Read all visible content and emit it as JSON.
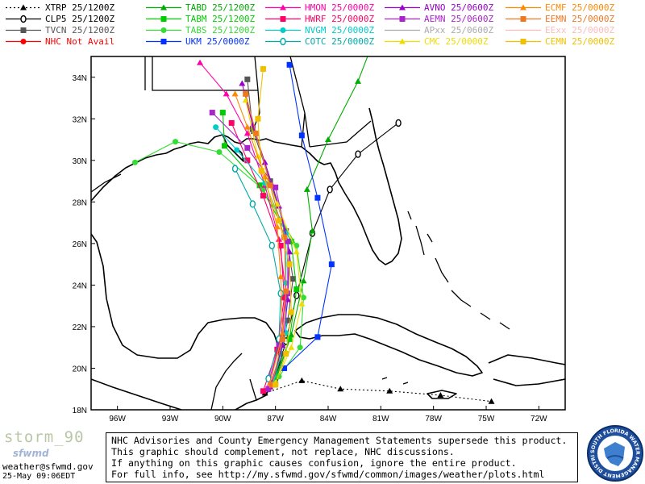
{
  "legend": [
    {
      "label": "XTRP 25/1200Z",
      "color": "#000000",
      "marker": "triangle",
      "dash": "2,3"
    },
    {
      "label": "CLP5 25/1200Z",
      "color": "#000000",
      "marker": "zero",
      "dash": ""
    },
    {
      "label": "TVCN 25/1200Z",
      "color": "#555555",
      "marker": "square",
      "dash": ""
    },
    {
      "label": "NHC Not Avail",
      "color": "#ff0000",
      "marker": "circle",
      "dash": ""
    },
    {
      "label": "TABD 25/1200Z",
      "color": "#00aa00",
      "marker": "triangle",
      "dash": ""
    },
    {
      "label": "TABM 25/1200Z",
      "color": "#00cc00",
      "marker": "square",
      "dash": ""
    },
    {
      "label": "TABS 25/1200Z",
      "color": "#33dd33",
      "marker": "circle",
      "dash": ""
    },
    {
      "label": "UKM 25/0000Z",
      "color": "#0033ff",
      "marker": "square",
      "dash": ""
    },
    {
      "label": "HMON 25/0000Z",
      "color": "#ff00aa",
      "marker": "triangle",
      "dash": ""
    },
    {
      "label": "HWRF 25/0000Z",
      "color": "#ff0066",
      "marker": "square",
      "dash": ""
    },
    {
      "label": "NVGM 25/0000Z",
      "color": "#00cccc",
      "marker": "circle",
      "dash": ""
    },
    {
      "label": "COTC 25/0000Z",
      "color": "#00aaaa",
      "marker": "zero",
      "dash": ""
    },
    {
      "label": "AVNO 25/0600Z",
      "color": "#9900cc",
      "marker": "triangle",
      "dash": ""
    },
    {
      "label": "AEMN 25/0600Z",
      "color": "#aa22cc",
      "marker": "square",
      "dash": ""
    },
    {
      "label": "APxx 25/0600Z",
      "color": "#aaaaaa",
      "marker": "none",
      "dash": ""
    },
    {
      "label": "CMC 25/0000Z",
      "color": "#eedd00",
      "marker": "triangle",
      "dash": ""
    },
    {
      "label": "ECMF 25/0000Z",
      "color": "#ff8800",
      "marker": "triangle",
      "dash": ""
    },
    {
      "label": "EEMN 25/0000Z",
      "color": "#ee7722",
      "marker": "square",
      "dash": ""
    },
    {
      "label": "EExx 25/0000Z",
      "color": "#ffbbbb",
      "marker": "none",
      "dash": ""
    },
    {
      "label": "CEMN 25/0000Z",
      "color": "#f0c000",
      "marker": "square",
      "dash": ""
    }
  ],
  "lat_labels": [
    "34N",
    "32N",
    "30N",
    "28N",
    "26N",
    "24N",
    "22N",
    "20N",
    "18N"
  ],
  "lon_labels": [
    "96W",
    "93W",
    "90W",
    "87W",
    "84W",
    "81W",
    "78W",
    "75W",
    "72W"
  ],
  "footer": {
    "storm_name": "storm_90",
    "wordmark": "sfwmd",
    "email": "weather@sfwmd.gov",
    "issued": "25-May 09:06EDT",
    "disclaimer": [
      "NHC Advisories and County Emergency Management Statements supersede this product.",
      "This graphic should complement, not replace, NHC discussions.",
      "If anything on this graphic causes confusion, ignore the entire product.",
      "For full info, see  http://my.sfwmd.gov/sfwmd/common/images/weather/plots.html"
    ],
    "seal_text": "SOUTH FLORIDA WATER MANAGEMENT DISTRICT"
  },
  "tracks": [
    {
      "name": "XTRP",
      "color": "#000000",
      "marker": "triangle",
      "dash": "2,3",
      "points": [
        [
          -87.6,
          18.8
        ],
        [
          -85.5,
          19.4
        ],
        [
          -83.3,
          19.0
        ],
        [
          -80.5,
          18.9
        ],
        [
          -77.6,
          18.7
        ],
        [
          -74.7,
          18.4
        ]
      ]
    },
    {
      "name": "CLP5",
      "color": "#000000",
      "marker": "zero",
      "dash": "",
      "points": [
        [
          -87.0,
          19.5
        ],
        [
          -86.4,
          21.3
        ],
        [
          -85.8,
          23.5
        ],
        [
          -84.9,
          26.5
        ],
        [
          -83.9,
          28.6
        ],
        [
          -82.3,
          30.3
        ],
        [
          -80.0,
          31.8
        ]
      ]
    },
    {
      "name": "TVCN",
      "color": "#555555",
      "marker": "square",
      "dash": "",
      "points": [
        [
          -87.2,
          19.2
        ],
        [
          -86.7,
          20.7
        ],
        [
          -86.3,
          22.3
        ],
        [
          -86.0,
          24.3
        ],
        [
          -86.4,
          26.6
        ],
        [
          -87.3,
          29.0
        ],
        [
          -88.3,
          31.5
        ],
        [
          -88.6,
          33.9
        ]
      ]
    },
    {
      "name": "TABD",
      "color": "#00aa00",
      "marker": "triangle",
      "dash": "",
      "points": [
        [
          -87.0,
          19.4
        ],
        [
          -86.1,
          21.6
        ],
        [
          -85.4,
          24.2
        ],
        [
          -84.9,
          26.6
        ],
        [
          -85.2,
          28.6
        ],
        [
          -84.0,
          31.0
        ],
        [
          -82.3,
          33.8
        ],
        [
          -81.3,
          36.0
        ]
      ]
    },
    {
      "name": "TABM",
      "color": "#00cc00",
      "marker": "square",
      "dash": "",
      "points": [
        [
          -87.1,
          19.3
        ],
        [
          -86.2,
          21.4
        ],
        [
          -85.8,
          23.8
        ],
        [
          -86.1,
          26.1
        ],
        [
          -87.9,
          28.8
        ],
        [
          -89.9,
          30.7
        ],
        [
          -90.0,
          32.3
        ]
      ]
    },
    {
      "name": "TABS",
      "color": "#33dd33",
      "marker": "circle",
      "dash": "",
      "points": [
        [
          -86.8,
          19.6
        ],
        [
          -85.6,
          21.0
        ],
        [
          -85.4,
          23.4
        ],
        [
          -85.8,
          25.9
        ],
        [
          -87.7,
          28.6
        ],
        [
          -90.2,
          30.4
        ],
        [
          -92.7,
          30.9
        ],
        [
          -95.0,
          29.9
        ]
      ]
    },
    {
      "name": "UKM",
      "color": "#0033ff",
      "marker": "square",
      "dash": "",
      "points": [
        [
          -86.5,
          20.0
        ],
        [
          -84.6,
          21.5
        ],
        [
          -83.8,
          25.0
        ],
        [
          -84.6,
          28.2
        ],
        [
          -85.5,
          31.2
        ],
        [
          -86.2,
          34.6
        ]
      ]
    },
    {
      "name": "HMON",
      "color": "#ff00aa",
      "marker": "triangle",
      "dash": "",
      "points": [
        [
          -87.5,
          19.0
        ],
        [
          -86.7,
          21.4
        ],
        [
          -86.4,
          23.7
        ],
        [
          -86.8,
          26.2
        ],
        [
          -87.6,
          28.8
        ],
        [
          -88.6,
          31.3
        ],
        [
          -89.8,
          33.2
        ],
        [
          -91.3,
          34.7
        ]
      ]
    },
    {
      "name": "HWRF",
      "color": "#ff0066",
      "marker": "square",
      "dash": "",
      "points": [
        [
          -87.7,
          18.9
        ],
        [
          -86.9,
          20.9
        ],
        [
          -86.5,
          23.4
        ],
        [
          -86.7,
          25.9
        ],
        [
          -87.7,
          28.3
        ],
        [
          -88.6,
          30.0
        ],
        [
          -89.5,
          31.8
        ]
      ]
    },
    {
      "name": "NVGM",
      "color": "#00cccc",
      "marker": "circle",
      "dash": "",
      "points": [
        [
          -87.1,
          19.3
        ],
        [
          -86.4,
          21.7
        ],
        [
          -86.4,
          24.1
        ],
        [
          -86.4,
          26.5
        ],
        [
          -87.6,
          28.9
        ],
        [
          -89.2,
          30.5
        ],
        [
          -90.4,
          31.6
        ]
      ]
    },
    {
      "name": "COTC",
      "color": "#00aaaa",
      "marker": "zero",
      "dash": "",
      "points": [
        [
          -87.4,
          19.5
        ],
        [
          -86.8,
          21.4
        ],
        [
          -86.7,
          23.6
        ],
        [
          -87.2,
          25.9
        ],
        [
          -88.3,
          27.9
        ],
        [
          -89.3,
          29.6
        ]
      ]
    },
    {
      "name": "AVNO",
      "color": "#9900cc",
      "marker": "triangle",
      "dash": "",
      "points": [
        [
          -87.3,
          19.1
        ],
        [
          -86.6,
          21.1
        ],
        [
          -86.3,
          23.3
        ],
        [
          -86.2,
          25.6
        ],
        [
          -86.8,
          27.8
        ],
        [
          -87.6,
          29.9
        ],
        [
          -88.3,
          31.7
        ],
        [
          -88.9,
          33.7
        ]
      ]
    },
    {
      "name": "AEMN",
      "color": "#aa22cc",
      "marker": "square",
      "dash": "",
      "points": [
        [
          -87.4,
          19.0
        ],
        [
          -86.8,
          21.1
        ],
        [
          -86.3,
          23.6
        ],
        [
          -86.3,
          26.1
        ],
        [
          -87.0,
          28.7
        ],
        [
          -88.6,
          30.6
        ],
        [
          -90.6,
          32.3
        ]
      ]
    },
    {
      "name": "CMC",
      "color": "#eedd00",
      "marker": "triangle",
      "dash": "",
      "points": [
        [
          -87.0,
          19.3
        ],
        [
          -86.1,
          21.0
        ],
        [
          -85.5,
          23.1
        ],
        [
          -85.8,
          25.6
        ],
        [
          -86.9,
          27.9
        ],
        [
          -88.0,
          30.2
        ],
        [
          -88.7,
          32.9
        ]
      ]
    },
    {
      "name": "ECMF",
      "color": "#ff8800",
      "marker": "triangle",
      "dash": "",
      "points": [
        [
          -87.3,
          19.3
        ],
        [
          -86.6,
          21.7
        ],
        [
          -86.7,
          24.4
        ],
        [
          -86.9,
          26.8
        ],
        [
          -87.6,
          29.2
        ],
        [
          -88.6,
          31.6
        ],
        [
          -89.3,
          33.2
        ]
      ]
    },
    {
      "name": "EEMN",
      "color": "#ee7722",
      "marker": "square",
      "dash": "",
      "points": [
        [
          -87.2,
          19.2
        ],
        [
          -86.6,
          21.4
        ],
        [
          -86.4,
          23.7
        ],
        [
          -86.5,
          26.3
        ],
        [
          -87.3,
          28.8
        ],
        [
          -88.1,
          31.3
        ],
        [
          -88.7,
          33.2
        ]
      ]
    },
    {
      "name": "CEMN",
      "color": "#f0c000",
      "marker": "square",
      "dash": "",
      "points": [
        [
          -87.0,
          19.2
        ],
        [
          -86.4,
          20.7
        ],
        [
          -86.1,
          22.7
        ],
        [
          -86.2,
          25.0
        ],
        [
          -86.8,
          27.1
        ],
        [
          -87.8,
          29.5
        ],
        [
          -88.0,
          32.0
        ],
        [
          -87.7,
          34.4
        ]
      ]
    }
  ]
}
